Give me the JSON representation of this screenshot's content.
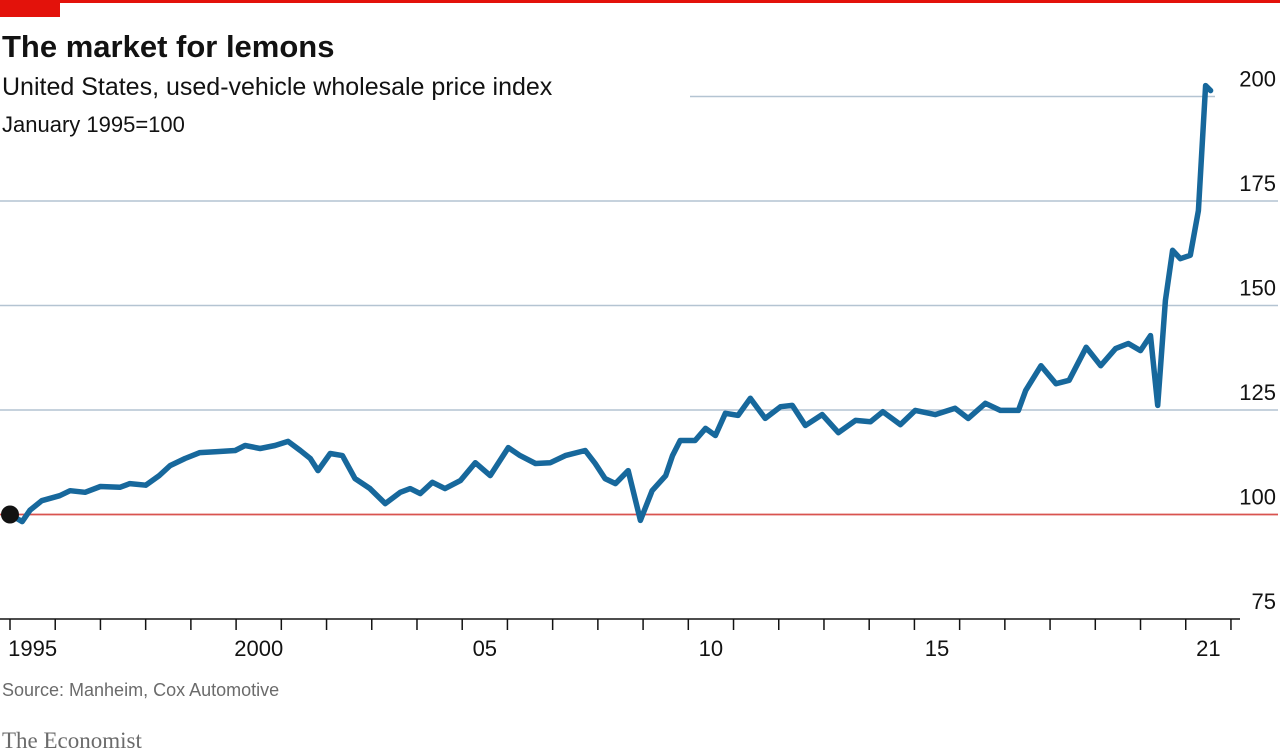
{
  "chart_data": {
    "type": "line",
    "title": "The market for lemons",
    "subtitle": "United States, used-vehicle wholesale price index",
    "y_label": "January 1995=100",
    "source": "Source: Manheim, Cox Automotive",
    "brand": "The Economist",
    "series": [
      {
        "name": "Used-vehicle wholesale price index",
        "color": "#17689c",
        "x": [
          1995.0,
          1995.27,
          1995.44,
          1995.7,
          1996.1,
          1996.33,
          1996.66,
          1997.0,
          1997.43,
          1997.65,
          1998.0,
          1998.3,
          1998.54,
          1998.87,
          1999.2,
          1999.54,
          1999.98,
          2000.2,
          2000.53,
          2000.86,
          2001.15,
          2001.42,
          2001.64,
          2001.81,
          2002.08,
          2002.35,
          2002.63,
          2002.96,
          2003.3,
          2003.63,
          2003.85,
          2004.07,
          2004.34,
          2004.62,
          2004.96,
          2005.29,
          2005.62,
          2006.02,
          2006.28,
          2006.62,
          2006.95,
          2007.28,
          2007.72,
          2007.94,
          2008.16,
          2008.39,
          2008.67,
          2008.94,
          2009.2,
          2009.5,
          2009.65,
          2009.82,
          2010.15,
          2010.38,
          2010.6,
          2010.82,
          2011.1,
          2011.37,
          2011.7,
          2012.04,
          2012.3,
          2012.59,
          2012.96,
          2013.32,
          2013.7,
          2014.03,
          2014.3,
          2014.69,
          2015.02,
          2015.46,
          2015.9,
          2016.19,
          2016.57,
          2016.9,
          2017.3,
          2017.46,
          2017.8,
          2018.13,
          2018.42,
          2018.8,
          2019.12,
          2019.45,
          2019.73,
          2020.0,
          2020.22,
          2020.38,
          2020.55,
          2020.71,
          2020.88,
          2021.1,
          2021.28,
          2021.44,
          2021.55
        ],
        "values": [
          100,
          98.3,
          101,
          103.3,
          104.5,
          105.7,
          105.3,
          106.7,
          106.5,
          107.4,
          107,
          109.3,
          111.7,
          113.4,
          114.8,
          115,
          115.3,
          116.5,
          115.8,
          116.5,
          117.5,
          115.3,
          113.4,
          110.5,
          114.6,
          114.1,
          108.6,
          106.2,
          102.6,
          105.3,
          106.2,
          105,
          107.7,
          106.2,
          108.1,
          112.4,
          109.3,
          116,
          114.1,
          112.2,
          112.4,
          114.1,
          115.3,
          112.2,
          108.6,
          107.4,
          110.5,
          98.6,
          105.7,
          109.3,
          114.1,
          117.7,
          117.7,
          120.6,
          118.9,
          124.2,
          123.7,
          127.8,
          123,
          125.8,
          126.1,
          121.3,
          123.9,
          119.6,
          122.5,
          122.2,
          124.6,
          121.5,
          124.9,
          123.9,
          125.4,
          123,
          126.6,
          124.9,
          124.9,
          129.7,
          135.6,
          131.3,
          132.1,
          140,
          135.6,
          139.7,
          140.9,
          139.2,
          142.8,
          126.1,
          151.2,
          163.2,
          161.2,
          162,
          172.7,
          202.6,
          201.4
        ]
      }
    ],
    "xlim": [
      1995,
      2022.2
    ],
    "xticks": [
      1995,
      1996,
      1997,
      1998,
      1999,
      2000,
      2001,
      2002,
      2003,
      2004,
      2005,
      2006,
      2007,
      2008,
      2009,
      2010,
      2011,
      2012,
      2013,
      2014,
      2015,
      2016,
      2017,
      2018,
      2019,
      2020,
      2021,
      2022
    ],
    "xtick_labels": [
      {
        "value": 1995,
        "label": "1995"
      },
      {
        "value": 2000,
        "label": "2000"
      },
      {
        "value": 2005,
        "label": "05"
      },
      {
        "value": 2010,
        "label": "10"
      },
      {
        "value": 2015,
        "label": "15"
      },
      {
        "value": 2021,
        "label": "21"
      }
    ],
    "ylim": [
      75,
      200
    ],
    "yticks": [
      75,
      100,
      125,
      150,
      175,
      200
    ],
    "reference_line": 100,
    "reference_color": "#d9534f",
    "grid": true
  }
}
